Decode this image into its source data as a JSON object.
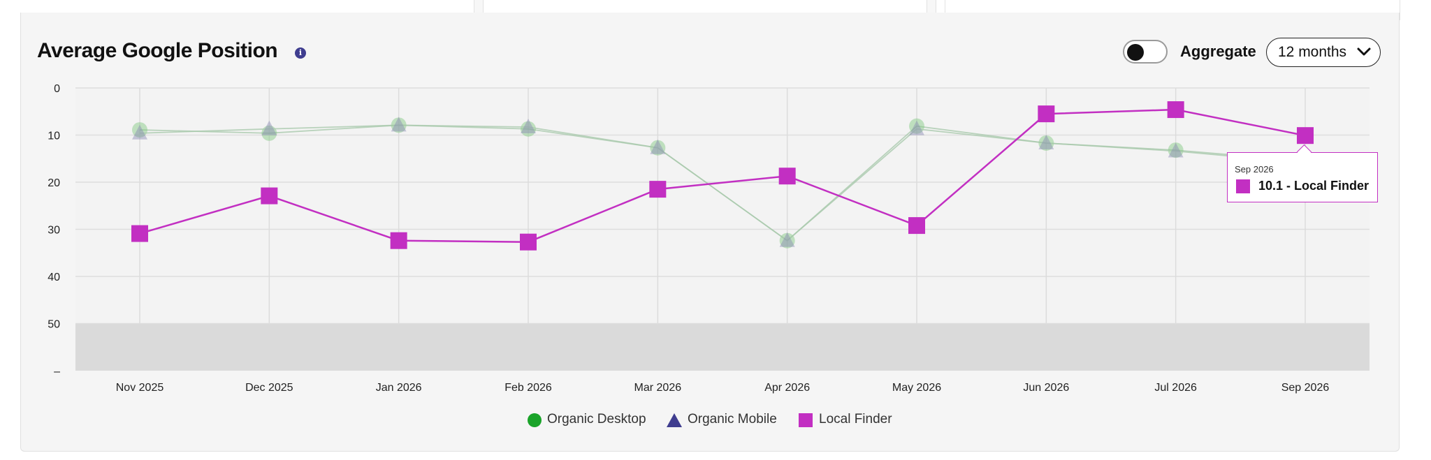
{
  "header": {
    "title": "Average Google Position",
    "info_icon": "info-icon",
    "aggregate_label": "Aggregate",
    "aggregate_on": false,
    "period": "12 months"
  },
  "colors": {
    "desktop": "#7fc87f",
    "mobile": "#3f3d8f",
    "local": "#c22fc2",
    "legend_desktop": "#1aa329"
  },
  "legend": {
    "desktop": "Organic Desktop",
    "mobile": "Organic Mobile",
    "local": "Local Finder"
  },
  "tooltip": {
    "date": "Sep 2026",
    "text": "10.1 - Local Finder"
  },
  "chart_data": {
    "type": "line",
    "categories": [
      "Nov 2025",
      "Dec 2025",
      "Jan 2026",
      "Feb 2026",
      "Mar 2026",
      "Apr 2026",
      "May 2026",
      "Jun 2026",
      "Jul 2026",
      "Sep 2026"
    ],
    "y_ticks": [
      "0",
      "10",
      "20",
      "30",
      "40",
      "50",
      "–"
    ],
    "ylim": [
      0,
      60
    ],
    "y_inverted": true,
    "grid": true,
    "legend_position": "bottom-center",
    "series": [
      {
        "name": "Organic Desktop",
        "marker": "circle",
        "values": [
          8.9,
          9.6,
          7.9,
          8.7,
          12.7,
          32.4,
          8.1,
          11.7,
          13.2,
          15.5
        ]
      },
      {
        "name": "Organic Mobile",
        "marker": "triangle",
        "values": [
          9.6,
          8.7,
          7.9,
          8.3,
          12.7,
          32.4,
          8.7,
          11.7,
          13.4,
          15.9
        ]
      },
      {
        "name": "Local Finder",
        "marker": "square",
        "values": [
          30.9,
          22.9,
          32.4,
          32.7,
          21.5,
          18.7,
          29.2,
          5.5,
          4.6,
          10.1
        ]
      }
    ]
  }
}
